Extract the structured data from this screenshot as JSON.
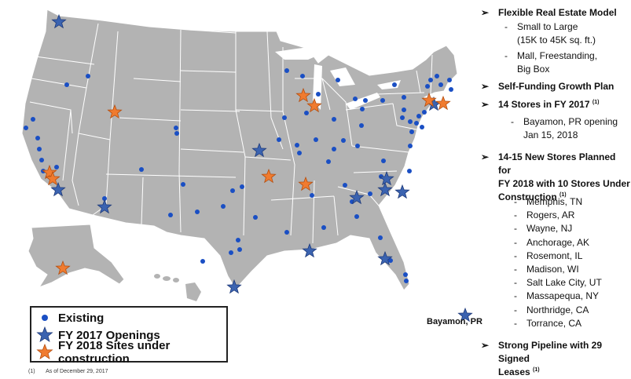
{
  "colors": {
    "land": "#b3b3b3",
    "border": "#ffffff",
    "existing": "#1a4fc4",
    "opening_2017": "#3b63b0",
    "site_2018": "#f07b2f"
  },
  "legend": {
    "existing": "Existing",
    "openings_2017": "FY 2017 Openings",
    "sites_2018": "FY 2018 Sites under construction"
  },
  "footnote": {
    "mark": "(1)",
    "text": "As of December 29, 2017"
  },
  "pr_label": "Bayamon, PR",
  "bullets": {
    "b1": {
      "title": "Flexible Real Estate Model",
      "items": [
        "Small to Large",
        "(15K to 45K sq. ft.)",
        "Mall, Freestanding,",
        "Big Box"
      ]
    },
    "b2": {
      "title": "Self-Funding Growth Plan"
    },
    "b3": {
      "title": "14 Stores in FY 2017",
      "sup": "(1)",
      "items": [
        "Bayamon, PR  opening",
        "Jan 15, 2018"
      ]
    },
    "b4": {
      "title_l1": "14-15 New Stores Planned for",
      "title_l2": "FY 2018 with 10 Stores Under",
      "title_l3": "Construction",
      "sup": "(1)",
      "stores": [
        "Memphis, TN",
        "Rogers, AR",
        "Wayne, NJ",
        "Anchorage, AK",
        "Rosemont, IL",
        "Madison, WI",
        "Salt Lake City, UT",
        "Massapequa, NY",
        "Northridge, CA",
        "Torrance, CA"
      ]
    },
    "b5": {
      "title_l1": "Strong Pipeline with 29 Signed",
      "title_l2": "Leases",
      "sup": "(1)"
    }
  }
}
